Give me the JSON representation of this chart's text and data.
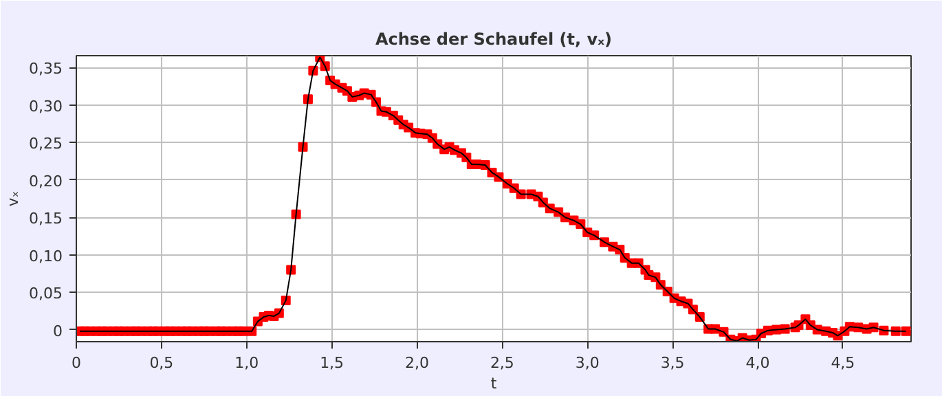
{
  "chart_data": {
    "type": "line",
    "title": "Achse der Schaufel (t, vₓ)",
    "xlabel": "t",
    "ylabel": "vₓ",
    "x": [
      0.02,
      0.05,
      0.08,
      0.12,
      0.15,
      0.18,
      0.22,
      0.25,
      0.28,
      0.32,
      0.35,
      0.38,
      0.42,
      0.45,
      0.48,
      0.52,
      0.55,
      0.58,
      0.62,
      0.65,
      0.68,
      0.72,
      0.75,
      0.78,
      0.82,
      0.85,
      0.88,
      0.92,
      0.95,
      0.98,
      1.03,
      1.065,
      1.1,
      1.13,
      1.16,
      1.19,
      1.23,
      1.26,
      1.29,
      1.33,
      1.36,
      1.39,
      1.43,
      1.46,
      1.49,
      1.52,
      1.56,
      1.59,
      1.62,
      1.66,
      1.69,
      1.73,
      1.76,
      1.79,
      1.82,
      1.86,
      1.89,
      1.92,
      1.95,
      1.99,
      2.02,
      2.06,
      2.09,
      2.12,
      2.16,
      2.19,
      2.22,
      2.26,
      2.29,
      2.32,
      2.35,
      2.4,
      2.44,
      2.48,
      2.53,
      2.57,
      2.61,
      2.67,
      2.71,
      2.74,
      2.78,
      2.83,
      2.87,
      2.92,
      2.96,
      3.0,
      3.04,
      3.1,
      3.15,
      3.19,
      3.22,
      3.26,
      3.3,
      3.34,
      3.36,
      3.4,
      3.43,
      3.47,
      3.51,
      3.55,
      3.59,
      3.62,
      3.66,
      3.71,
      3.75,
      3.8,
      3.84,
      3.88,
      3.91,
      3.95,
      3.99,
      4.02,
      4.06,
      4.11,
      4.16,
      4.22,
      4.24,
      4.28,
      4.31,
      4.35,
      4.4,
      4.44,
      4.47,
      4.51,
      4.54,
      4.59,
      4.64,
      4.68,
      4.74,
      4.81,
      4.87
    ],
    "series": [
      {
        "color": "#ff0000",
        "values": [
          -0.002,
          -0.002,
          -0.002,
          -0.002,
          -0.002,
          -0.002,
          -0.002,
          -0.002,
          -0.002,
          -0.002,
          -0.002,
          -0.002,
          -0.002,
          -0.002,
          -0.002,
          -0.002,
          -0.002,
          -0.002,
          -0.002,
          -0.002,
          -0.002,
          -0.002,
          -0.002,
          -0.002,
          -0.002,
          -0.002,
          -0.002,
          -0.002,
          -0.002,
          -0.002,
          -0.002,
          0.011,
          0.017,
          0.019,
          0.018,
          0.022,
          0.039,
          0.08,
          0.154,
          0.244,
          0.308,
          0.346,
          0.364,
          0.352,
          0.333,
          0.328,
          0.323,
          0.319,
          0.311,
          0.313,
          0.316,
          0.314,
          0.304,
          0.292,
          0.291,
          0.286,
          0.28,
          0.274,
          0.27,
          0.263,
          0.262,
          0.261,
          0.256,
          0.248,
          0.241,
          0.244,
          0.24,
          0.236,
          0.23,
          0.221,
          0.221,
          0.22,
          0.21,
          0.204,
          0.195,
          0.189,
          0.181,
          0.181,
          0.178,
          0.17,
          0.162,
          0.157,
          0.15,
          0.146,
          0.141,
          0.13,
          0.126,
          0.117,
          0.111,
          0.107,
          0.096,
          0.089,
          0.089,
          0.08,
          0.073,
          0.07,
          0.06,
          0.051,
          0.042,
          0.038,
          0.035,
          0.027,
          0.017,
          0.001,
          0.001,
          -0.003,
          -0.013,
          -0.015,
          -0.011,
          -0.014,
          -0.013,
          -0.005,
          -0.001,
          0,
          0.001,
          0.003,
          0.006,
          0.014,
          0.006,
          0,
          -0.002,
          -0.004,
          -0.008,
          -0.002,
          0.004,
          0.003,
          0.001,
          0.003,
          -0.001,
          -0.002,
          -0.002
        ]
      }
    ],
    "marker": "square",
    "grid": true,
    "xlim": [
      0,
      4.9
    ],
    "ylim": [
      -0.016,
      0.366
    ],
    "xticks": [
      0,
      {
        "value": 0.5,
        "label": "0,5"
      },
      {
        "value": 1.0,
        "label": "1,0"
      },
      {
        "value": 1.5,
        "label": "1,5"
      },
      {
        "value": 2.0,
        "label": "2,0"
      },
      {
        "value": 2.5,
        "label": "2,5"
      },
      {
        "value": 3.0,
        "label": "3,0"
      },
      {
        "value": 3.5,
        "label": "3,5"
      },
      {
        "value": 4.0,
        "label": "4,0"
      },
      {
        "value": 4.5,
        "label": "4,5"
      }
    ],
    "yticks": [
      0,
      {
        "value": 0.05,
        "label": "0,05"
      },
      {
        "value": 0.1,
        "label": "0,10"
      },
      {
        "value": 0.15,
        "label": "0,15"
      },
      {
        "value": 0.2,
        "label": "0,20"
      },
      {
        "value": 0.25,
        "label": "0,25"
      },
      {
        "value": 0.3,
        "label": "0,30"
      },
      {
        "value": 0.35,
        "label": "0,35"
      }
    ]
  }
}
